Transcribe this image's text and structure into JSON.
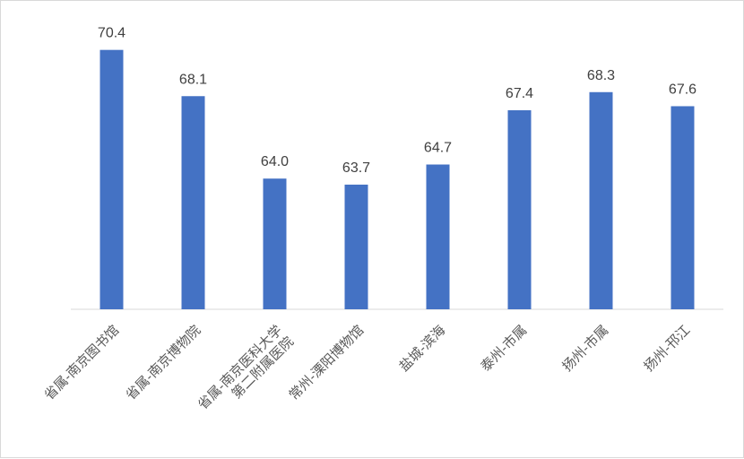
{
  "chart_data": {
    "type": "bar",
    "title": "",
    "xlabel": "",
    "ylabel": "",
    "categories": [
      "省属-南京图书馆",
      "省属-南京博物院",
      "省属-南京医科大学\n第二附属医院",
      "常州-溧阳博物馆",
      "盐城-滨海",
      "泰州-市属",
      "扬州-市属",
      "扬州-邗江"
    ],
    "values": [
      70.4,
      68.1,
      64.0,
      63.7,
      64.7,
      67.4,
      68.3,
      67.6
    ],
    "value_labels": [
      "70.4",
      "68.1",
      "64.0",
      "63.7",
      "64.7",
      "67.4",
      "68.3",
      "67.6"
    ],
    "ylim": [
      57.5,
      71.5
    ],
    "grid": false,
    "legend": "none",
    "bar_color": "#4472C4"
  }
}
